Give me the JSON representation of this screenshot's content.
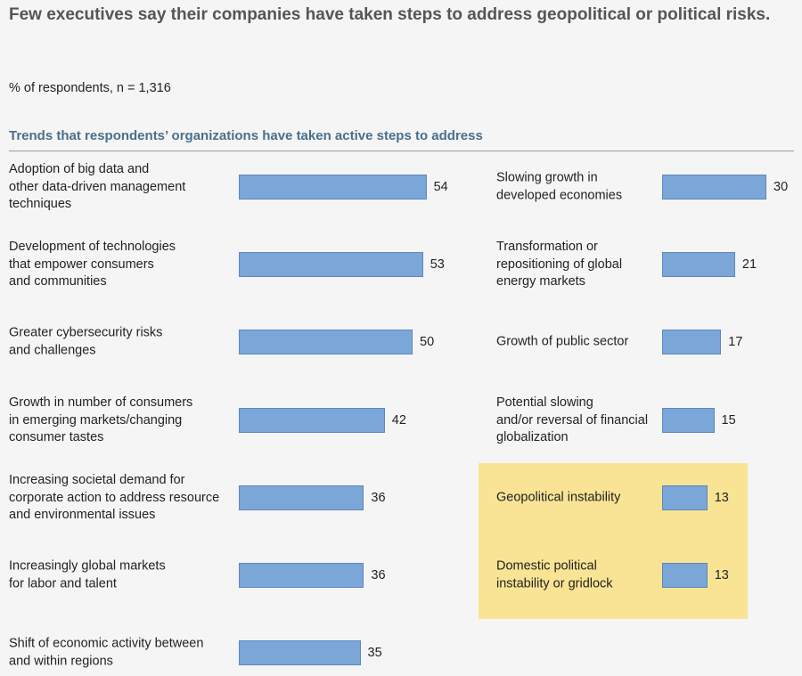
{
  "header": {
    "title": "Few executives say their companies have taken steps to address geopolitical or political risks.",
    "subtitle": "% of respondents,  n = 1,316",
    "section_heading": "Trends that respondents’ organizations have taken active steps to address"
  },
  "colors": {
    "bar": "#7aa7d8",
    "bar_border": "#5d87bc",
    "highlight": "#f8e494",
    "heading": "#4a6f8c"
  },
  "chart_data": {
    "type": "bar",
    "orientation": "horizontal",
    "unit": "% of respondents",
    "grid": false,
    "legend": "none",
    "columns": [
      {
        "categories": [
          "Adoption of big data and\nother data-driven management\ntechniques",
          "Development of technologies\nthat empower consumers\nand communities",
          "Greater cybersecurity risks\nand challenges",
          "Growth in number of consumers\nin emerging markets/changing\nconsumer tastes",
          "Increasing societal demand for\ncorporate action to address resource\nand environmental issues",
          "Increasingly global markets\nfor labor and talent",
          "Shift of economic activity between\nand within regions"
        ],
        "values": [
          54,
          53,
          50,
          42,
          36,
          36,
          35
        ]
      },
      {
        "categories": [
          "Slowing growth in\ndeveloped economies",
          "Transformation or\nrepositioning of global\nenergy markets",
          "Growth of public sector",
          "Potential slowing\nand/or reversal of financial\nglobalization",
          "Geopolitical instability",
          "Domestic political\ninstability or gridlock"
        ],
        "values": [
          30,
          21,
          17,
          15,
          13,
          13
        ],
        "highlighted": [
          false,
          false,
          false,
          false,
          true,
          true
        ]
      }
    ]
  }
}
